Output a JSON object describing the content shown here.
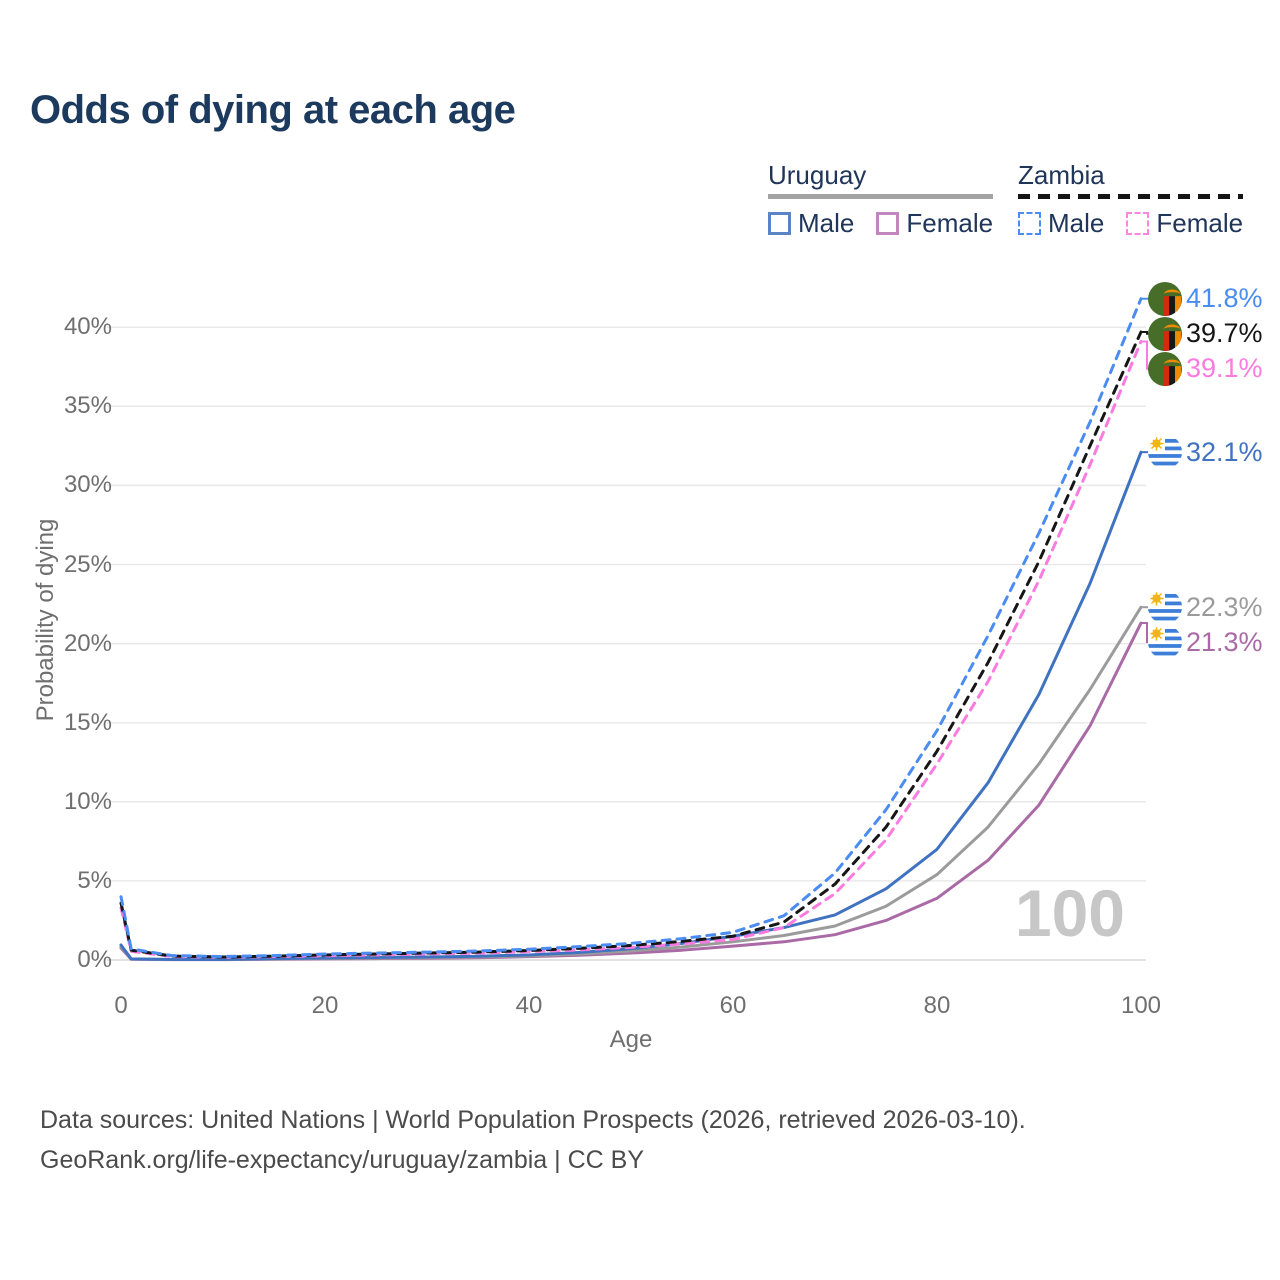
{
  "title": "Odds of dying at each age",
  "legend": {
    "groups": [
      {
        "label": "Uruguay",
        "line_style": "solid",
        "line_color": "#a3a3a3",
        "items": [
          {
            "label": "Male",
            "color": "#5b84c6"
          },
          {
            "label": "Female",
            "color": "#c286bf"
          }
        ]
      },
      {
        "label": "Zambia",
        "line_style": "dashed",
        "line_color": "#141414",
        "items": [
          {
            "label": "Male",
            "color": "#4a8cf2"
          },
          {
            "label": "Female",
            "color": "#fb85e4"
          }
        ]
      }
    ]
  },
  "watermark": "100",
  "footer": {
    "line1": "Data sources: United Nations | World Population Prospects (2026, retrieved 2026-03-10).",
    "line2": "GeoRank.org/life-expectancy/uruguay/zambia | CC BY"
  },
  "chart_data": {
    "type": "line",
    "title": "Odds of dying at each age",
    "xlabel": "Age",
    "ylabel": "Probability of dying",
    "xlim": [
      0,
      100
    ],
    "ylim_pct": [
      0,
      43
    ],
    "x_ticks": [
      0,
      20,
      40,
      60,
      80,
      100
    ],
    "y_ticks_pct": [
      0,
      5,
      10,
      15,
      20,
      25,
      30,
      35,
      40
    ],
    "y_tick_format": "percent",
    "grid": true,
    "legend_position": "top-right",
    "ages": [
      0,
      1,
      5,
      10,
      15,
      20,
      25,
      30,
      35,
      40,
      45,
      50,
      55,
      60,
      65,
      70,
      75,
      80,
      85,
      90,
      95,
      100
    ],
    "series": [
      {
        "name": "Zambia Male",
        "country": "Zambia",
        "sex": "Male",
        "color": "#4a8cf2",
        "dashed": true,
        "end_label": "41.8%",
        "end_value": 41.8,
        "values": [
          4.0,
          0.7,
          0.28,
          0.22,
          0.28,
          0.38,
          0.44,
          0.5,
          0.57,
          0.68,
          0.85,
          1.05,
          1.35,
          1.75,
          2.8,
          5.5,
          9.5,
          14.5,
          20.5,
          27.0,
          34.0,
          41.8
        ]
      },
      {
        "name": "Zambia Both sexes",
        "country": "Zambia",
        "sex": "All",
        "color": "#161616",
        "dashed": true,
        "end_label": "39.7%",
        "end_value": 39.7,
        "values": [
          3.6,
          0.62,
          0.25,
          0.19,
          0.24,
          0.32,
          0.38,
          0.44,
          0.5,
          0.6,
          0.74,
          0.92,
          1.18,
          1.5,
          2.4,
          4.8,
          8.4,
          13.2,
          18.8,
          25.2,
          32.5,
          39.7
        ]
      },
      {
        "name": "Zambia Female",
        "country": "Zambia",
        "sex": "Female",
        "color": "#fb7be0",
        "dashed": true,
        "end_label": "39.1%",
        "end_value": 39.1,
        "values": [
          3.3,
          0.55,
          0.22,
          0.17,
          0.21,
          0.27,
          0.32,
          0.38,
          0.44,
          0.53,
          0.64,
          0.8,
          1.02,
          1.3,
          2.05,
          4.2,
          7.6,
          12.4,
          17.6,
          24.0,
          31.3,
          39.1
        ]
      },
      {
        "name": "Uruguay Male",
        "country": "Uruguay",
        "sex": "Male",
        "color": "#3f72c0",
        "dashed": false,
        "end_label": "32.1%",
        "end_value": 32.1,
        "values": [
          0.95,
          0.07,
          0.03,
          0.03,
          0.09,
          0.13,
          0.16,
          0.19,
          0.24,
          0.32,
          0.48,
          0.72,
          1.05,
          1.5,
          2.05,
          2.85,
          4.5,
          7.0,
          11.2,
          16.8,
          23.8,
          32.1
        ]
      },
      {
        "name": "Uruguay Both sexes",
        "country": "Uruguay",
        "sex": "All",
        "color": "#9b9b9b",
        "dashed": false,
        "end_label": "22.3%",
        "end_value": 22.3,
        "values": [
          0.85,
          0.06,
          0.03,
          0.03,
          0.07,
          0.1,
          0.12,
          0.15,
          0.19,
          0.26,
          0.38,
          0.57,
          0.82,
          1.15,
          1.55,
          2.15,
          3.4,
          5.4,
          8.4,
          12.4,
          17.1,
          22.3
        ]
      },
      {
        "name": "Uruguay Female",
        "country": "Uruguay",
        "sex": "Female",
        "color": "#a96aa6",
        "dashed": false,
        "end_label": "21.3%",
        "end_value": 21.3,
        "values": [
          0.75,
          0.05,
          0.02,
          0.02,
          0.05,
          0.07,
          0.09,
          0.11,
          0.14,
          0.21,
          0.3,
          0.44,
          0.62,
          0.88,
          1.15,
          1.6,
          2.5,
          3.9,
          6.3,
          9.8,
          14.8,
          21.3
        ]
      }
    ]
  }
}
